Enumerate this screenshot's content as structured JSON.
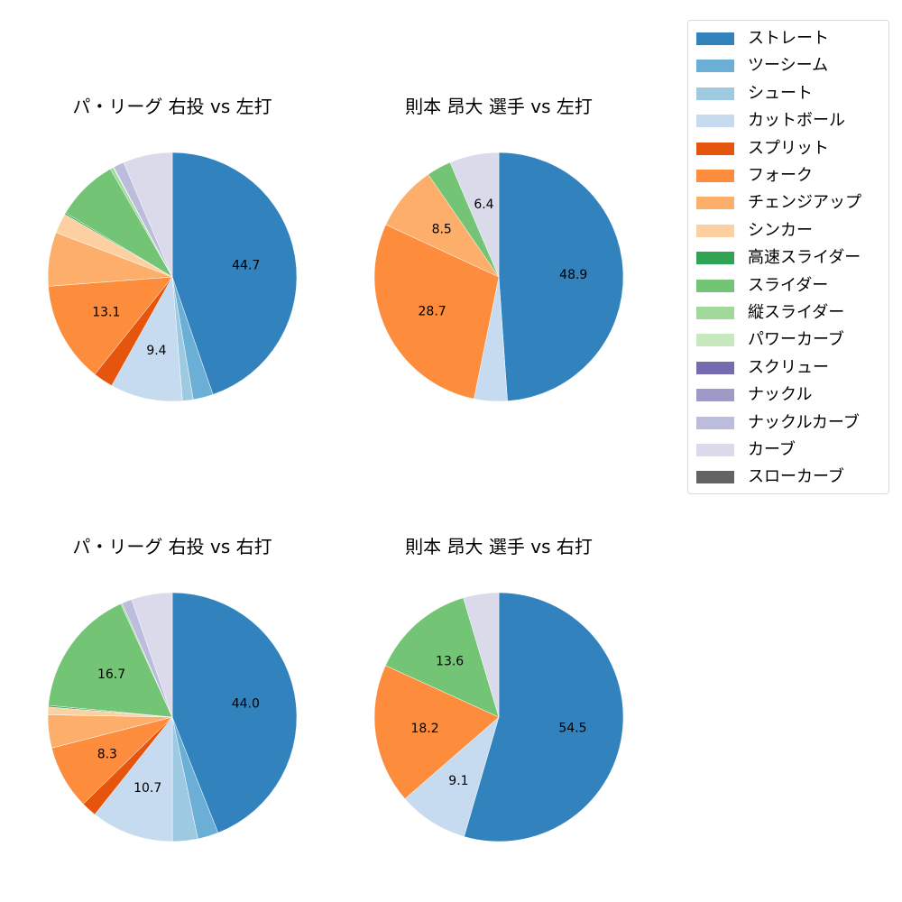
{
  "legend": {
    "items": [
      {
        "label": "ストレート",
        "color": "#3182bd"
      },
      {
        "label": "ツーシーム",
        "color": "#6baed6"
      },
      {
        "label": "シュート",
        "color": "#9ecae1"
      },
      {
        "label": "カットボール",
        "color": "#c6dbef"
      },
      {
        "label": "スプリット",
        "color": "#e6550d"
      },
      {
        "label": "フォーク",
        "color": "#fd8d3c"
      },
      {
        "label": "チェンジアップ",
        "color": "#fdae6b"
      },
      {
        "label": "シンカー",
        "color": "#fdd0a2"
      },
      {
        "label": "高速スライダー",
        "color": "#31a354"
      },
      {
        "label": "スライダー",
        "color": "#74c476"
      },
      {
        "label": "縦スライダー",
        "color": "#a1d99b"
      },
      {
        "label": "パワーカーブ",
        "color": "#c7e9c0"
      },
      {
        "label": "スクリュー",
        "color": "#756bb1"
      },
      {
        "label": "ナックル",
        "color": "#9e9ac8"
      },
      {
        "label": "ナックルカーブ",
        "color": "#bcbddc"
      },
      {
        "label": "カーブ",
        "color": "#dadaeb"
      },
      {
        "label": "スローカーブ",
        "color": "#636363"
      }
    ]
  },
  "chart_data": [
    {
      "type": "pie",
      "title": "パ・リーグ 右投 vs 左打",
      "start_angle": 90,
      "direction": "clockwise",
      "categories": [
        "ストレート",
        "ツーシーム",
        "シュート",
        "カットボール",
        "スプリット",
        "フォーク",
        "チェンジアップ",
        "シンカー",
        "高速スライダー",
        "スライダー",
        "縦スライダー",
        "パワーカーブ",
        "ナックルカーブ",
        "カーブ"
      ],
      "values": [
        44.7,
        2.6,
        1.4,
        9.4,
        2.6,
        13.1,
        7.0,
        2.6,
        0.2,
        8.1,
        0.4,
        0.1,
        1.4,
        6.4
      ],
      "labels_shown": {
        "ストレート": "44.7",
        "カットボール": "9.4",
        "フォーク": "13.1"
      }
    },
    {
      "type": "pie",
      "title": "則本 昂大 選手 vs 左打",
      "start_angle": 90,
      "direction": "clockwise",
      "categories": [
        "ストレート",
        "カットボール",
        "フォーク",
        "チェンジアップ",
        "スライダー",
        "カーブ"
      ],
      "values": [
        48.9,
        4.3,
        28.7,
        8.5,
        3.2,
        6.4
      ],
      "labels_shown": {
        "ストレート": "48.9",
        "フォーク": "28.7",
        "チェンジアップ": "8.5",
        "カーブ": "6.4"
      }
    },
    {
      "type": "pie",
      "title": "パ・リーグ 右投 vs 右打",
      "start_angle": 90,
      "direction": "clockwise",
      "categories": [
        "ストレート",
        "ツーシーム",
        "シュート",
        "カットボール",
        "スプリット",
        "フォーク",
        "チェンジアップ",
        "シンカー",
        "高速スライダー",
        "スライダー",
        "縦スライダー",
        "ナックルカーブ",
        "カーブ"
      ],
      "values": [
        44.0,
        2.7,
        3.3,
        10.7,
        2.0,
        8.3,
        4.3,
        1.0,
        0.2,
        16.7,
        0.2,
        1.3,
        5.3
      ],
      "labels_shown": {
        "ストレート": "44.0",
        "カットボール": "10.7",
        "フォーク": "8.3",
        "スライダー": "16.7"
      }
    },
    {
      "type": "pie",
      "title": "則本 昂大 選手 vs 右打",
      "start_angle": 90,
      "direction": "clockwise",
      "categories": [
        "ストレート",
        "カットボール",
        "フォーク",
        "スライダー",
        "カーブ"
      ],
      "values": [
        54.5,
        9.1,
        18.2,
        13.6,
        4.6
      ],
      "labels_shown": {
        "ストレート": "54.5",
        "カットボール": "9.1",
        "フォーク": "18.2",
        "スライダー": "13.6"
      }
    }
  ],
  "panels": [
    {
      "title": "パ・リーグ 右投 vs 左打"
    },
    {
      "title": "則本 昂大 選手 vs 左打"
    },
    {
      "title": "パ・リーグ 右投 vs 右打"
    },
    {
      "title": "則本 昂大 選手 vs 右打"
    }
  ]
}
